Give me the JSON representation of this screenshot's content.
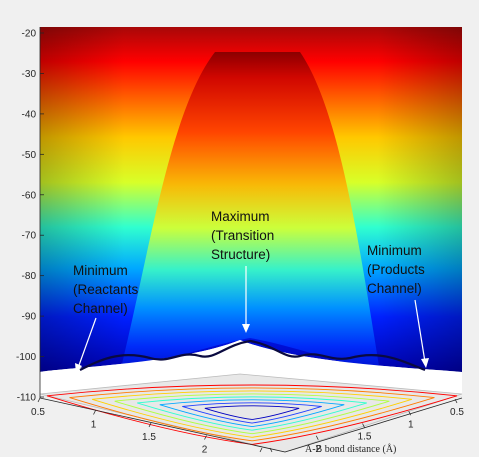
{
  "chart_data": {
    "type": "surface",
    "title": "",
    "zlabel": "",
    "xlabel": "A-B bond distance (Å)",
    "z_ticks": [
      "-20",
      "-30",
      "-40",
      "-50",
      "-60",
      "-70",
      "-80",
      "-90",
      "-100",
      "-110"
    ],
    "x_ticks": [
      "0.5",
      "1",
      "1.5",
      "2",
      "2.5"
    ],
    "y_ticks": [
      "0.5",
      "1",
      "1.5",
      "2",
      "2.5"
    ],
    "zlim": [
      -110,
      -20
    ],
    "colormap": "jet",
    "colormap_colors": [
      "#00008f",
      "#0000ff",
      "#00ffff",
      "#ffff00",
      "#ff0000",
      "#800000"
    ],
    "annotations": [
      {
        "id": "min-left",
        "lines": [
          "Minimum",
          "(Reactants",
          "Channel)"
        ]
      },
      {
        "id": "max-center",
        "lines": [
          "Maximum",
          "(Transition",
          "Structure)"
        ]
      },
      {
        "id": "min-right",
        "lines": [
          "Minimum",
          "(Products",
          "Channel)"
        ]
      }
    ]
  }
}
